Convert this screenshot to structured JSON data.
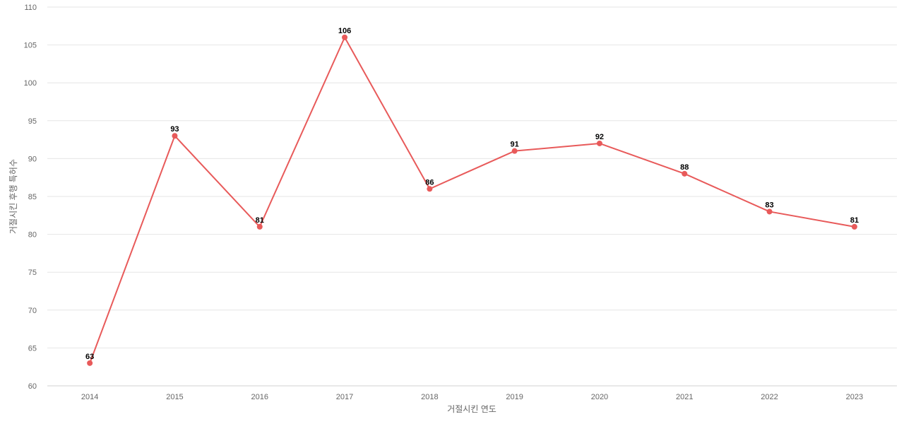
{
  "chart_data": {
    "type": "line",
    "title": "",
    "xlabel": "거절시킨 연도",
    "ylabel": "거절시킨 후행 특허수",
    "categories": [
      "2014",
      "2015",
      "2016",
      "2017",
      "2018",
      "2019",
      "2020",
      "2021",
      "2022",
      "2023"
    ],
    "series": [
      {
        "values": [
          63,
          93,
          81,
          106,
          86,
          91,
          92,
          88,
          83,
          81
        ]
      }
    ],
    "ylim": [
      60,
      110
    ],
    "yticks": [
      60,
      65,
      70,
      75,
      80,
      85,
      90,
      95,
      100,
      105,
      110
    ],
    "grid": true,
    "data_labels": true,
    "legend": "none",
    "line_color": "#e85a5a",
    "grid_color": "#e6e6e6",
    "tick_color": "#666666"
  }
}
